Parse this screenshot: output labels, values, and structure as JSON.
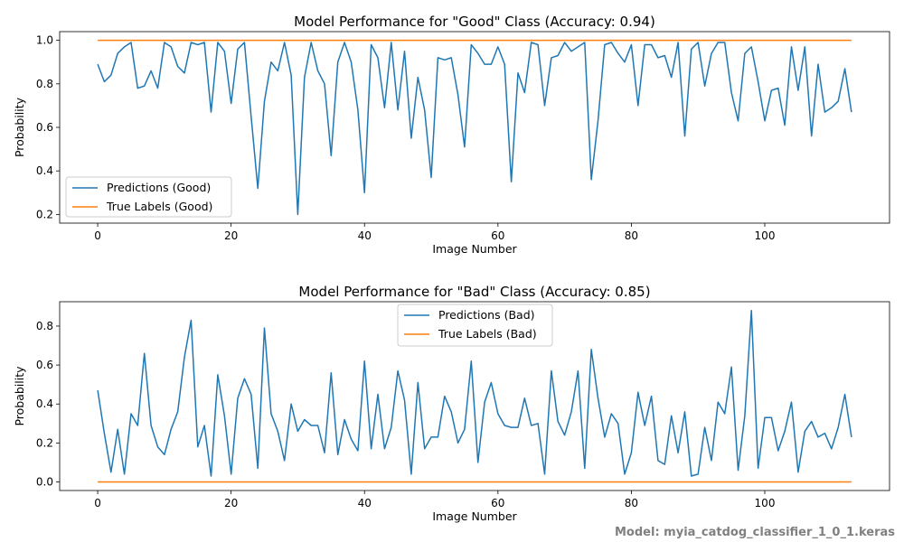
{
  "chart_data": [
    {
      "type": "line",
      "title": "Model Performance for \"Good\" Class (Accuracy: 0.94)",
      "xlabel": "Image Number",
      "ylabel": "Probability",
      "xlim": [
        -5.7,
        118.7
      ],
      "ylim": [
        0.16,
        1.04
      ],
      "xticks": [
        0,
        20,
        40,
        60,
        80,
        100
      ],
      "yticks": [
        0.2,
        0.4,
        0.6,
        0.8,
        1.0
      ],
      "ytick_labels": [
        "0.2",
        "0.4",
        "0.6",
        "0.8",
        "1.0"
      ],
      "legend": "lower-left",
      "series": [
        {
          "name": "Predictions (Good)",
          "color": "#1f77b4",
          "x": [
            0,
            1,
            2,
            3,
            4,
            5,
            6,
            7,
            8,
            9,
            10,
            11,
            12,
            13,
            14,
            15,
            16,
            17,
            18,
            19,
            20,
            21,
            22,
            23,
            24,
            25,
            26,
            27,
            28,
            29,
            30,
            31,
            32,
            33,
            34,
            35,
            36,
            37,
            38,
            39,
            40,
            41,
            42,
            43,
            44,
            45,
            46,
            47,
            48,
            49,
            50,
            51,
            52,
            53,
            54,
            55,
            56,
            57,
            58,
            59,
            60,
            61,
            62,
            63,
            64,
            65,
            66,
            67,
            68,
            69,
            70,
            71,
            72,
            73,
            74,
            75,
            76,
            77,
            78,
            79,
            80,
            81,
            82,
            83,
            84,
            85,
            86,
            87,
            88,
            89,
            90,
            91,
            92,
            93,
            94,
            95,
            96,
            97,
            98,
            99,
            100,
            101,
            102,
            103,
            104,
            105,
            106,
            107,
            108,
            109,
            110,
            111,
            112,
            113
          ],
          "values": [
            0.89,
            0.81,
            0.84,
            0.94,
            0.97,
            0.99,
            0.78,
            0.79,
            0.86,
            0.78,
            0.99,
            0.97,
            0.88,
            0.85,
            0.99,
            0.98,
            0.99,
            0.67,
            0.99,
            0.95,
            0.71,
            0.96,
            0.99,
            0.65,
            0.32,
            0.72,
            0.9,
            0.86,
            0.99,
            0.84,
            0.2,
            0.83,
            0.99,
            0.86,
            0.8,
            0.47,
            0.9,
            0.99,
            0.9,
            0.68,
            0.3,
            0.98,
            0.92,
            0.69,
            0.99,
            0.68,
            0.95,
            0.55,
            0.83,
            0.68,
            0.37,
            0.92,
            0.91,
            0.92,
            0.75,
            0.51,
            0.98,
            0.94,
            0.89,
            0.89,
            0.97,
            0.89,
            0.35,
            0.85,
            0.76,
            0.99,
            0.98,
            0.7,
            0.92,
            0.93,
            0.99,
            0.95,
            0.97,
            0.99,
            0.36,
            0.63,
            0.98,
            0.99,
            0.94,
            0.9,
            0.98,
            0.7,
            0.98,
            0.98,
            0.92,
            0.93,
            0.83,
            0.99,
            0.56,
            0.96,
            0.99,
            0.79,
            0.94,
            0.99,
            0.99,
            0.76,
            0.63,
            0.94,
            0.97,
            0.81,
            0.63,
            0.77,
            0.78,
            0.61,
            0.97,
            0.77,
            0.97,
            0.56,
            0.89,
            0.67,
            0.69,
            0.72,
            0.87,
            0.67
          ]
        },
        {
          "name": "True Labels (Good)",
          "color": "#ff7f0e",
          "x": [
            0,
            113
          ],
          "values": [
            1,
            1
          ]
        }
      ]
    },
    {
      "type": "line",
      "title": "Model Performance for \"Bad\" Class (Accuracy: 0.85)",
      "xlabel": "Image Number",
      "ylabel": "Probability",
      "xlim": [
        -5.7,
        118.7
      ],
      "ylim": [
        -0.044,
        0.925
      ],
      "xticks": [
        0,
        20,
        40,
        60,
        80,
        100
      ],
      "yticks": [
        0.0,
        0.2,
        0.4,
        0.6,
        0.8
      ],
      "ytick_labels": [
        "0.0",
        "0.2",
        "0.4",
        "0.6",
        "0.8"
      ],
      "legend": "upper-center",
      "series": [
        {
          "name": "Predictions (Bad)",
          "color": "#1f77b4",
          "x": [
            0,
            1,
            2,
            3,
            4,
            5,
            6,
            7,
            8,
            9,
            10,
            11,
            12,
            13,
            14,
            15,
            16,
            17,
            18,
            19,
            20,
            21,
            22,
            23,
            24,
            25,
            26,
            27,
            28,
            29,
            30,
            31,
            32,
            33,
            34,
            35,
            36,
            37,
            38,
            39,
            40,
            41,
            42,
            43,
            44,
            45,
            46,
            47,
            48,
            49,
            50,
            51,
            52,
            53,
            54,
            55,
            56,
            57,
            58,
            59,
            60,
            61,
            62,
            63,
            64,
            65,
            66,
            67,
            68,
            69,
            70,
            71,
            72,
            73,
            74,
            75,
            76,
            77,
            78,
            79,
            80,
            81,
            82,
            83,
            84,
            85,
            86,
            87,
            88,
            89,
            90,
            91,
            92,
            93,
            94,
            95,
            96,
            97,
            98,
            99,
            100,
            101,
            102,
            103,
            104,
            105,
            106,
            107,
            108,
            109,
            110,
            111,
            112,
            113
          ],
          "values": [
            0.47,
            0.25,
            0.05,
            0.27,
            0.04,
            0.35,
            0.29,
            0.66,
            0.29,
            0.18,
            0.14,
            0.27,
            0.36,
            0.64,
            0.83,
            0.18,
            0.29,
            0.03,
            0.55,
            0.34,
            0.04,
            0.43,
            0.53,
            0.45,
            0.07,
            0.79,
            0.35,
            0.26,
            0.11,
            0.4,
            0.26,
            0.32,
            0.29,
            0.29,
            0.15,
            0.56,
            0.14,
            0.32,
            0.22,
            0.16,
            0.62,
            0.17,
            0.45,
            0.17,
            0.28,
            0.57,
            0.42,
            0.04,
            0.51,
            0.17,
            0.23,
            0.23,
            0.44,
            0.36,
            0.2,
            0.27,
            0.62,
            0.1,
            0.41,
            0.51,
            0.35,
            0.29,
            0.28,
            0.28,
            0.43,
            0.29,
            0.3,
            0.04,
            0.57,
            0.31,
            0.24,
            0.36,
            0.57,
            0.07,
            0.68,
            0.43,
            0.23,
            0.35,
            0.3,
            0.04,
            0.15,
            0.46,
            0.29,
            0.44,
            0.11,
            0.09,
            0.34,
            0.15,
            0.36,
            0.03,
            0.04,
            0.28,
            0.11,
            0.41,
            0.35,
            0.59,
            0.06,
            0.34,
            0.88,
            0.07,
            0.33,
            0.33,
            0.16,
            0.26,
            0.41,
            0.05,
            0.26,
            0.31,
            0.23,
            0.25,
            0.17,
            0.28,
            0.45,
            0.23
          ]
        },
        {
          "name": "True Labels (Bad)",
          "color": "#ff7f0e",
          "x": [
            0,
            113
          ],
          "values": [
            0,
            0
          ]
        }
      ]
    }
  ],
  "footnote": "Model: myia_catdog_classifier_1_0_1.keras"
}
